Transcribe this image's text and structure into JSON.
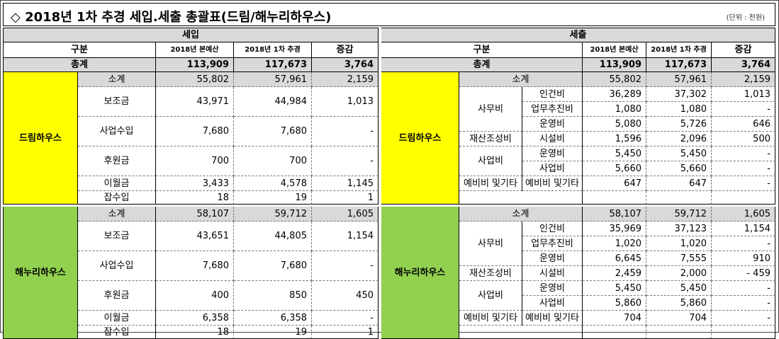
{
  "title": "◇ 2018년 1차 추경 세입.세출 총괄표(드림/해누리하우스)",
  "unit": "(단위 : 천원)",
  "income": {
    "header": "세입",
    "col_category": "구분",
    "col_base": "2018년 본예산",
    "col_revised": "2018년 1차 추경",
    "col_change": "증감",
    "total_label": "총계",
    "total": {
      "base": "113,909",
      "revised": "117,673",
      "change": "3,764"
    },
    "groups": [
      {
        "name": "드림하우스",
        "rows": [
          {
            "label": "소계",
            "base": "55,802",
            "revised": "57,961",
            "change": "2,159"
          },
          {
            "label": "보조금",
            "base": "43,971",
            "revised": "44,984",
            "change": "1,013"
          },
          {
            "label": "사업수입",
            "base": "7,680",
            "revised": "7,680",
            "change": "-"
          },
          {
            "label": "후원금",
            "base": "700",
            "revised": "700",
            "change": "-"
          },
          {
            "label": "이월금",
            "base": "3,433",
            "revised": "4,578",
            "change": "1,145"
          },
          {
            "label": "잡수입",
            "base": "18",
            "revised": "19",
            "change": "1"
          }
        ]
      },
      {
        "name": "해누리하우스",
        "rows": [
          {
            "label": "소계",
            "base": "58,107",
            "revised": "59,712",
            "change": "1,605"
          },
          {
            "label": "보조금",
            "base": "43,651",
            "revised": "44,805",
            "change": "1,154"
          },
          {
            "label": "사업수입",
            "base": "7,680",
            "revised": "7,680",
            "change": "-"
          },
          {
            "label": "후원금",
            "base": "400",
            "revised": "850",
            "change": "450"
          },
          {
            "label": "이월금",
            "base": "6,358",
            "revised": "6,358",
            "change": "-"
          },
          {
            "label": "잡수입",
            "base": "18",
            "revised": "19",
            "change": "1"
          }
        ]
      }
    ]
  },
  "expense": {
    "header": "세출",
    "col_category": "구분",
    "col_base": "2018년 본예산",
    "col_revised": "2018년 1차 추경",
    "col_change": "증감",
    "total_label": "총계",
    "total": {
      "base": "113,909",
      "revised": "117,673",
      "change": "3,764"
    },
    "groups": [
      {
        "name": "드림하우스",
        "subtotal": {
          "label": "소계",
          "base": "55,802",
          "revised": "57,961",
          "change": "2,159"
        },
        "cat_office": "사무비",
        "cat_asset": "재산조성비",
        "cat_project": "사업비",
        "cat_reserve": "예비비 및기타",
        "items": [
          {
            "label": "인건비",
            "base": "36,289",
            "revised": "37,302",
            "change": "1,013"
          },
          {
            "label": "업무추진비",
            "base": "1,080",
            "revised": "1,080",
            "change": "-"
          },
          {
            "label": "운영비",
            "base": "5,080",
            "revised": "5,726",
            "change": "646"
          },
          {
            "label": "시설비",
            "base": "1,596",
            "revised": "2,096",
            "change": "500"
          },
          {
            "label": "운영비",
            "base": "5,450",
            "revised": "5,450",
            "change": "-"
          },
          {
            "label": "사업비",
            "base": "5,660",
            "revised": "5,660",
            "change": "-"
          },
          {
            "label": "예비비 및기타",
            "base": "647",
            "revised": "647",
            "change": "-"
          }
        ]
      },
      {
        "name": "해누리하우스",
        "subtotal": {
          "label": "소계",
          "base": "58,107",
          "revised": "59,712",
          "change": "1,605"
        },
        "cat_office": "사무비",
        "cat_asset": "재산조성비",
        "cat_project": "사업비",
        "cat_reserve": "예비비 및기타",
        "items": [
          {
            "label": "인건비",
            "base": "35,969",
            "revised": "37,123",
            "change": "1,154"
          },
          {
            "label": "업무추진비",
            "base": "1,020",
            "revised": "1,020",
            "change": "-"
          },
          {
            "label": "운영비",
            "base": "6,645",
            "revised": "7,555",
            "change": "910"
          },
          {
            "label": "시설비",
            "base": "2,459",
            "revised": "2,000",
            "change": "- 459"
          },
          {
            "label": "운영비",
            "base": "5,450",
            "revised": "5,450",
            "change": "-"
          },
          {
            "label": "사업비",
            "base": "5,860",
            "revised": "5,860",
            "change": "-"
          },
          {
            "label": "예비비 및기타",
            "base": "704",
            "revised": "704",
            "change": "-"
          }
        ]
      }
    ]
  },
  "colors": {
    "dream": "#ffff00",
    "haenuri": "#92d050",
    "header_gray": "#d9d9d9"
  }
}
